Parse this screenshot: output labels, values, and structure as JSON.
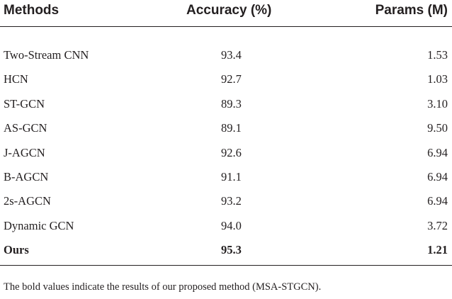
{
  "header": {
    "methods": "Methods",
    "accuracy": "Accuracy (%)",
    "params": "Params (M)"
  },
  "rows": [
    {
      "method": "Two-Stream CNN",
      "accuracy": "93.4",
      "params": "1.53"
    },
    {
      "method": "HCN",
      "accuracy": "92.7",
      "params": "1.03"
    },
    {
      "method": "ST-GCN",
      "accuracy": "89.3",
      "params": "3.10"
    },
    {
      "method": "AS-GCN",
      "accuracy": "89.1",
      "params": "9.50"
    },
    {
      "method": "J-AGCN",
      "accuracy": "92.6",
      "params": "6.94"
    },
    {
      "method": "B-AGCN",
      "accuracy": "91.1",
      "params": "6.94"
    },
    {
      "method": "2s-AGCN",
      "accuracy": "93.2",
      "params": "6.94"
    },
    {
      "method": "Dynamic GCN",
      "accuracy": "94.0",
      "params": "3.72"
    },
    {
      "method": "Ours",
      "accuracy": "95.3",
      "params": "1.21"
    }
  ],
  "footnote": "The bold values indicate the results of our proposed method (MSA-STGCN)."
}
